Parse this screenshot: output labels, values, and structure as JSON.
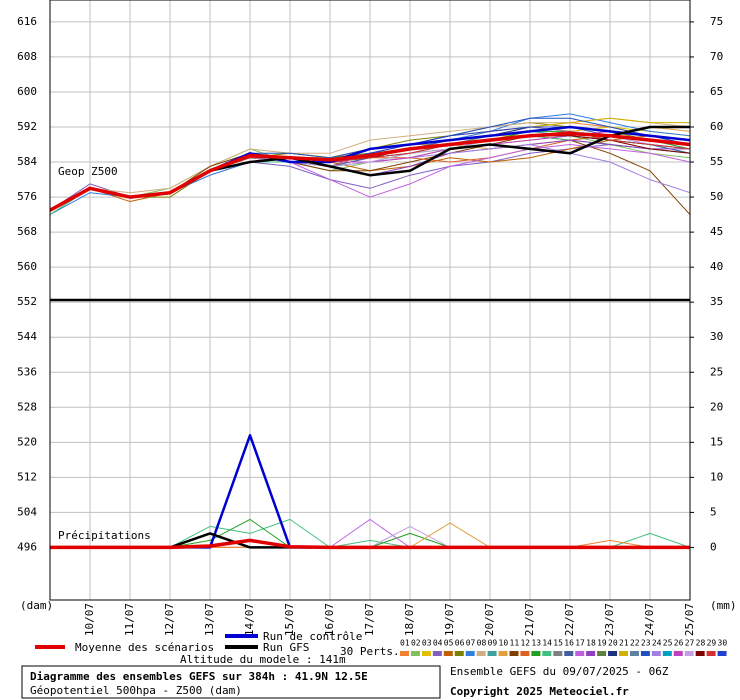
{
  "chart_data": [
    {
      "type": "line",
      "label": "Geop Z500",
      "y_label": "(dam)",
      "xlim": [
        0,
        16
      ],
      "ylim": [
        484,
        621
      ],
      "x": [
        0,
        1,
        2,
        3,
        4,
        5,
        6,
        7,
        8,
        9,
        10,
        11,
        12,
        13,
        14,
        15,
        16
      ],
      "xticks": [
        {
          "value": 1,
          "label": "10/07"
        },
        {
          "value": 2,
          "label": "11/07"
        },
        {
          "value": 3,
          "label": "12/07"
        },
        {
          "value": 4,
          "label": "13/07"
        },
        {
          "value": 5,
          "label": "14/07"
        },
        {
          "value": 6,
          "label": "15/07"
        },
        {
          "value": 7,
          "label": "16/07"
        },
        {
          "value": 8,
          "label": "17/07"
        },
        {
          "value": 9,
          "label": "18/07"
        },
        {
          "value": 10,
          "label": "19/07"
        },
        {
          "value": 11,
          "label": "20/07"
        },
        {
          "value": 12,
          "label": "21/07"
        },
        {
          "value": 13,
          "label": "22/07"
        },
        {
          "value": 14,
          "label": "23/07"
        },
        {
          "value": 15,
          "label": "24/07"
        },
        {
          "value": 16,
          "label": "25/07"
        }
      ],
      "yticks": [
        496,
        504,
        512,
        520,
        528,
        536,
        544,
        552,
        560,
        568,
        576,
        584,
        592,
        600,
        608,
        616
      ],
      "grid": true,
      "series": [
        {
          "name": "01",
          "color": "#f08030",
          "values": [
            573,
            578,
            576,
            577,
            582,
            586,
            585,
            583,
            586,
            588,
            589,
            591,
            592,
            593,
            592,
            590,
            589
          ]
        },
        {
          "name": "02",
          "color": "#80c060",
          "values": [
            573,
            578,
            576,
            578,
            583,
            587,
            584,
            582,
            584,
            585,
            587,
            588,
            589,
            590,
            588,
            586,
            585
          ]
        },
        {
          "name": "03",
          "color": "#e0c000",
          "values": [
            572,
            578,
            576,
            577,
            582,
            585,
            586,
            585,
            586,
            587,
            589,
            590,
            590,
            591,
            592,
            591,
            590
          ]
        },
        {
          "name": "04",
          "color": "#8060c0",
          "values": [
            573,
            579,
            576,
            577,
            581,
            584,
            583,
            580,
            578,
            581,
            583,
            584,
            586,
            587,
            588,
            587,
            586
          ]
        },
        {
          "name": "05",
          "color": "#c06000",
          "values": [
            573,
            578,
            575,
            577,
            582,
            586,
            585,
            584,
            582,
            583,
            585,
            584,
            585,
            587,
            589,
            590,
            588
          ]
        },
        {
          "name": "06",
          "color": "#808000",
          "values": [
            573,
            578,
            576,
            576,
            582,
            585,
            586,
            585,
            587,
            589,
            590,
            592,
            593,
            592,
            591,
            589,
            588
          ]
        },
        {
          "name": "07",
          "color": "#3080e0",
          "values": [
            572,
            577,
            576,
            577,
            581,
            584,
            584,
            583,
            585,
            587,
            589,
            591,
            594,
            595,
            593,
            591,
            590
          ]
        },
        {
          "name": "08",
          "color": "#d0b080",
          "values": [
            573,
            578,
            577,
            578,
            583,
            587,
            586,
            586,
            589,
            590,
            591,
            592,
            593,
            593,
            594,
            593,
            592
          ]
        },
        {
          "name": "09",
          "color": "#40a0a0",
          "values": [
            573,
            578,
            576,
            577,
            582,
            585,
            584,
            584,
            586,
            587,
            588,
            590,
            591,
            590,
            589,
            588,
            586
          ]
        },
        {
          "name": "10",
          "color": "#e0a040",
          "values": [
            573,
            578,
            576,
            577,
            582,
            586,
            585,
            585,
            587,
            588,
            588,
            587,
            588,
            589,
            590,
            592,
            591
          ]
        },
        {
          "name": "11",
          "color": "#804000",
          "values": [
            573,
            578,
            576,
            577,
            583,
            586,
            584,
            582,
            582,
            584,
            586,
            588,
            590,
            589,
            586,
            582,
            572
          ]
        },
        {
          "name": "12",
          "color": "#e06020",
          "values": [
            573,
            578,
            576,
            577,
            582,
            585,
            584,
            584,
            585,
            585,
            584,
            585,
            587,
            589,
            590,
            589,
            588
          ]
        },
        {
          "name": "13",
          "color": "#20a020",
          "values": [
            573,
            578,
            576,
            577,
            582,
            585,
            585,
            584,
            585,
            586,
            587,
            589,
            591,
            591,
            590,
            589,
            587
          ]
        },
        {
          "name": "14",
          "color": "#40c080",
          "values": [
            572,
            578,
            576,
            577,
            582,
            584,
            584,
            583,
            584,
            586,
            588,
            589,
            590,
            589,
            588,
            587,
            586
          ]
        },
        {
          "name": "15",
          "color": "#808080",
          "values": [
            573,
            578,
            576,
            577,
            582,
            585,
            585,
            584,
            586,
            587,
            588,
            590,
            592,
            591,
            590,
            589,
            588
          ]
        },
        {
          "name": "16",
          "color": "#4060a0",
          "values": [
            573,
            578,
            576,
            577,
            582,
            585,
            584,
            583,
            585,
            587,
            589,
            590,
            591,
            592,
            590,
            588,
            586
          ]
        },
        {
          "name": "17",
          "color": "#c060e0",
          "values": [
            573,
            578,
            576,
            577,
            582,
            586,
            584,
            580,
            576,
            579,
            583,
            585,
            587,
            588,
            587,
            586,
            584
          ]
        },
        {
          "name": "18",
          "color": "#9040c0",
          "values": [
            573,
            578,
            576,
            577,
            582,
            585,
            585,
            583,
            581,
            583,
            586,
            587,
            588,
            589,
            588,
            587,
            587
          ]
        },
        {
          "name": "19",
          "color": "#608040",
          "values": [
            573,
            578,
            576,
            577,
            582,
            585,
            585,
            585,
            586,
            587,
            588,
            589,
            590,
            591,
            590,
            589,
            588
          ]
        },
        {
          "name": "20",
          "color": "#203080",
          "values": [
            573,
            578,
            576,
            577,
            582,
            585,
            585,
            584,
            586,
            588,
            589,
            590,
            592,
            592,
            591,
            590,
            589
          ]
        },
        {
          "name": "21",
          "color": "#d0b000",
          "values": [
            573,
            578,
            576,
            577,
            582,
            586,
            585,
            585,
            587,
            588,
            590,
            591,
            592,
            593,
            594,
            593,
            593
          ]
        },
        {
          "name": "22",
          "color": "#6080a0",
          "values": [
            573,
            578,
            576,
            577,
            582,
            585,
            585,
            584,
            585,
            586,
            588,
            589,
            590,
            590,
            589,
            588,
            587
          ]
        },
        {
          "name": "23",
          "color": "#2050c0",
          "values": [
            573,
            578,
            576,
            577,
            582,
            586,
            586,
            585,
            587,
            588,
            590,
            592,
            594,
            594,
            592,
            590,
            589
          ]
        },
        {
          "name": "24",
          "color": "#a080e0",
          "values": [
            573,
            578,
            576,
            577,
            582,
            585,
            584,
            583,
            584,
            585,
            586,
            587,
            588,
            586,
            584,
            580,
            577
          ]
        },
        {
          "name": "25",
          "color": "#00a0c0",
          "values": [
            573,
            578,
            576,
            577,
            582,
            585,
            585,
            584,
            585,
            587,
            588,
            589,
            590,
            590,
            589,
            588,
            587
          ]
        },
        {
          "name": "26",
          "color": "#c040c0",
          "values": [
            573,
            578,
            576,
            577,
            582,
            586,
            585,
            584,
            584,
            585,
            587,
            588,
            589,
            590,
            591,
            590,
            589
          ]
        },
        {
          "name": "27",
          "color": "#c0a0e0",
          "values": [
            573,
            578,
            576,
            577,
            582,
            585,
            584,
            583,
            584,
            586,
            587,
            589,
            590,
            591,
            590,
            588,
            587
          ]
        },
        {
          "name": "28",
          "color": "#800000",
          "values": [
            573,
            578,
            576,
            577,
            582,
            585,
            585,
            584,
            585,
            587,
            588,
            589,
            590,
            590,
            589,
            587,
            586
          ]
        },
        {
          "name": "29",
          "color": "#d03030",
          "values": [
            573,
            578,
            576,
            577,
            582,
            585,
            585,
            584,
            585,
            586,
            588,
            589,
            590,
            591,
            589,
            588,
            587
          ]
        },
        {
          "name": "30",
          "color": "#2040d0",
          "values": [
            573,
            578,
            576,
            577,
            582,
            586,
            585,
            584,
            586,
            588,
            590,
            591,
            592,
            592,
            591,
            590,
            588
          ]
        },
        {
          "name": "Run de contrôle",
          "color": "#0000d0",
          "values": [
            573,
            578,
            576,
            577,
            582,
            586,
            584,
            584,
            587,
            588,
            589,
            590,
            591,
            592,
            591,
            590,
            589
          ]
        },
        {
          "name": "Run GFS",
          "color": "#000000",
          "values": [
            573,
            578,
            576,
            577,
            582,
            584,
            585,
            583,
            581,
            582,
            587,
            588,
            587,
            586,
            590,
            592,
            592
          ]
        },
        {
          "name": "Moyenne des scénarios",
          "color": "#e00000",
          "values": [
            573,
            578,
            576,
            577,
            582,
            585.5,
            585,
            584.5,
            585.5,
            587,
            588,
            589,
            590,
            590.5,
            590,
            589,
            588
          ]
        }
      ],
      "perturbations_label": "30 Perts."
    },
    {
      "type": "line",
      "label": "Précipitations",
      "y_label": "(mm)",
      "ylim": [
        -7.5,
        78.125
      ],
      "yticks": [
        0,
        5,
        10,
        15,
        20,
        25,
        30,
        35,
        40,
        45,
        50,
        55,
        60,
        65,
        70,
        75
      ],
      "series": [
        {
          "color": "#40c080",
          "values": [
            0,
            0,
            0,
            0,
            3,
            2,
            4,
            0,
            1,
            0,
            0,
            0,
            0,
            0,
            0,
            2,
            0
          ]
        },
        {
          "color": "#20a020",
          "values": [
            0,
            0,
            0,
            0,
            1,
            4,
            0,
            0,
            0,
            2,
            0,
            0,
            0,
            0,
            0,
            0,
            0
          ]
        },
        {
          "color": "#c060e0",
          "values": [
            0,
            0,
            0,
            0,
            0,
            0,
            0,
            0,
            4,
            0,
            0,
            0,
            0,
            0,
            0,
            0,
            0
          ]
        },
        {
          "color": "#c0a0e0",
          "values": [
            0,
            0,
            0,
            0,
            0,
            0,
            0,
            0,
            0,
            3,
            0,
            0,
            0,
            0,
            0,
            0,
            0
          ]
        },
        {
          "color": "#e0a040",
          "values": [
            0,
            0,
            0,
            0,
            0,
            0,
            0,
            0,
            0,
            0,
            3.5,
            0,
            0,
            0,
            0,
            0,
            0
          ]
        },
        {
          "color": "#f08030",
          "values": [
            0,
            0,
            0,
            0,
            0,
            0,
            0,
            0,
            0,
            0,
            0,
            0,
            0,
            0,
            1,
            0,
            0
          ]
        },
        {
          "color": "#0000d0",
          "values": [
            0,
            0,
            0,
            0,
            0,
            16,
            0,
            0,
            0,
            0,
            0,
            0,
            0,
            0,
            0,
            0,
            0
          ]
        },
        {
          "color": "#000000",
          "values": [
            0,
            0,
            0,
            0,
            2,
            0,
            0,
            0,
            0,
            0,
            0,
            0,
            0,
            0,
            0,
            0,
            0
          ]
        },
        {
          "color": "#e00000",
          "values": [
            0,
            0,
            0,
            0,
            0.2,
            1,
            0.1,
            0,
            0,
            0,
            0,
            0,
            0,
            0,
            0,
            0,
            0
          ]
        }
      ]
    }
  ],
  "footer": {
    "altitude": "Altitude du modele : 141m",
    "title": "Diagramme des ensembles GEFS sur 384h : 41.9N 12.5E",
    "subtitle": "Géopotentiel 500hpa - Z500 (dam)",
    "run": "Ensemble GEFS du 09/07/2025 - 06Z",
    "copyright": "Copyright 2025 Meteociel.fr"
  }
}
